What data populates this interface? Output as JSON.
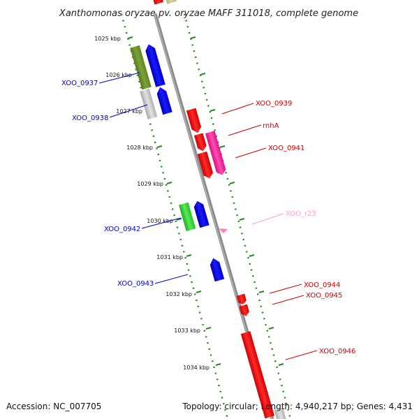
{
  "title": "Xanthomonas oryzae pv. oryzae MAFF 311018, complete genome",
  "accession": "Accession: NC_007705",
  "summary": "Topology: circular; Length: 4,940,217 bp; Genes: 4,431",
  "ticks": [
    "1025 kbp",
    "1026 kbp",
    "1027 kbp",
    "1028 kbp",
    "1029 kbp",
    "1030 kbp",
    "1031 kbp",
    "1032 kbp",
    "1033 kbp",
    "1034 kbp"
  ],
  "colors": {
    "cds": "#ff0000",
    "gene_blue": "#0000ff",
    "gene_green": "#33cc33",
    "olive": "#6b8e23",
    "gray": "#bbbbbb",
    "pink": "#ff1493",
    "rna": "#ff99cc",
    "dots": "#228b22",
    "backbone": "#888888"
  },
  "left_labels": [
    {
      "text": "XOO_0937",
      "color": "#0000cc"
    },
    {
      "text": "XOO_0938",
      "color": "#0000cc"
    },
    {
      "text": "XOO_0942",
      "color": "#0000cc"
    },
    {
      "text": "XOO_0943",
      "color": "#0000cc"
    }
  ],
  "right_labels": [
    {
      "text": "XOO_0939",
      "color": "#cc0000"
    },
    {
      "text": "rnhA",
      "color": "#cc0000"
    },
    {
      "text": "XOO_0941",
      "color": "#cc0000"
    },
    {
      "text": "XOO_r23",
      "color": "#ff99cc"
    },
    {
      "text": "XOO_0944",
      "color": "#cc0000"
    },
    {
      "text": "XOO_0945",
      "color": "#cc0000"
    },
    {
      "text": "XOO_0946",
      "color": "#cc0000"
    }
  ]
}
